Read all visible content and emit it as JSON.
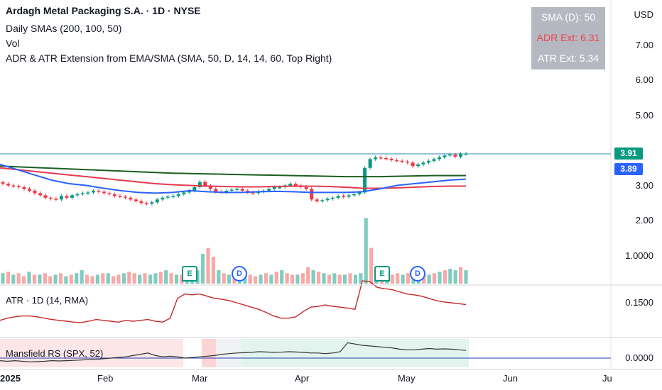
{
  "header": {
    "symbol_line": "Ardagh Metal Packaging S.A. · 1D · NYSE",
    "sma_line": "Daily SMAs (200, 100, 50)",
    "vol_line": "Vol",
    "indicator_line": "ADR & ATR Extension from EMA/SMA (SMA, 50, D, 14, 14, 60, Top Right)"
  },
  "info_box": {
    "sma_label": "SMA (D): 50",
    "adr_label": "ADR Ext: 6.31",
    "atr_label": "ATR Ext: 5.34",
    "colors": {
      "sma": "#ffffff",
      "adr": "#f23645",
      "atr": "#ffffff"
    }
  },
  "price_axis": {
    "currency": "USD",
    "ticks": [
      "7.00",
      "6.00",
      "5.00",
      "4.00",
      "3.00",
      "2.00",
      "1.0000"
    ]
  },
  "price_tags": {
    "last": "3.91",
    "sma": "3.89",
    "last_color": "#089981",
    "sma_color": "#2962ff"
  },
  "atr_pane": {
    "label": "ATR · 1D (14, RMA)",
    "tick": "0.1500",
    "color": "#c62828"
  },
  "rs_pane": {
    "label": "Mansfield RS (SPX, 52)",
    "tick": "0.0000"
  },
  "time_axis": [
    "2025",
    "Feb",
    "Mar",
    "Apr",
    "May",
    "Jun",
    "Ju"
  ],
  "markers": {
    "earnings": "E",
    "dividend": "D"
  },
  "colors": {
    "up": "#089981",
    "down": "#f23645",
    "vol_up": "#7fccc0",
    "vol_down": "#f7a9a7",
    "sma200": "#1b5e20",
    "sma100": "#e53950",
    "sma50": "#2962ff",
    "atr": "#c62828",
    "rs": "#333333"
  },
  "chart_data": [
    {
      "type": "candlestick",
      "title": "Ardagh Metal Packaging S.A. · 1D · NYSE",
      "ylim": [
        0.5,
        8.0
      ],
      "y_ticks": [
        1.0,
        2.0,
        3.0,
        4.0,
        5.0,
        6.0,
        7.0
      ],
      "x": [
        "2025-01",
        "Feb",
        "Mar",
        "Apr",
        "May",
        "Jun",
        "Jul"
      ],
      "close_series": [
        3.05,
        3.0,
        2.98,
        2.95,
        2.9,
        2.85,
        2.78,
        2.72,
        2.65,
        2.62,
        2.6,
        2.7,
        2.65,
        2.72,
        2.75,
        2.78,
        2.8,
        2.85,
        2.82,
        2.78,
        2.75,
        2.7,
        2.68,
        2.65,
        2.6,
        2.55,
        2.5,
        2.48,
        2.52,
        2.6,
        2.65,
        2.68,
        2.7,
        2.75,
        2.8,
        2.85,
        2.95,
        3.1,
        3.0,
        2.9,
        2.82,
        2.8,
        2.85,
        2.88,
        2.9,
        2.85,
        2.8,
        2.78,
        2.82,
        2.85,
        2.9,
        2.95,
        2.95,
        3.0,
        3.05,
        3.0,
        2.95,
        2.9,
        2.6,
        2.55,
        2.58,
        2.62,
        2.65,
        2.7,
        2.68,
        2.72,
        2.75,
        2.8,
        3.5,
        3.75,
        3.8,
        3.78,
        3.76,
        3.72,
        3.7,
        3.68,
        3.65,
        3.55,
        3.6,
        3.65,
        3.7,
        3.75,
        3.8,
        3.85,
        3.88,
        3.82,
        3.9,
        3.91
      ],
      "sma_200": [
        3.55,
        3.53,
        3.51,
        3.49,
        3.47,
        3.45,
        3.43,
        3.41,
        3.39,
        3.37,
        3.35,
        3.34,
        3.33,
        3.32,
        3.31,
        3.3,
        3.29,
        3.28,
        3.27,
        3.26,
        3.25,
        3.25,
        3.25,
        3.26,
        3.27,
        3.28,
        3.28,
        3.28
      ],
      "sma_100": [
        3.5,
        3.45,
        3.4,
        3.35,
        3.3,
        3.25,
        3.2,
        3.15,
        3.1,
        3.05,
        3.02,
        3.0,
        2.98,
        2.97,
        2.96,
        2.96,
        2.97,
        2.98,
        2.98,
        2.97,
        2.95,
        2.92,
        2.92,
        2.93,
        2.95,
        2.97,
        2.98,
        2.98
      ],
      "sma_50": [
        3.6,
        3.45,
        3.3,
        3.15,
        3.05,
        3.0,
        2.92,
        2.85,
        2.8,
        2.78,
        2.8,
        2.85,
        2.82,
        2.8,
        2.8,
        2.82,
        2.83,
        2.82,
        2.8,
        2.8,
        2.8,
        2.82,
        2.9,
        3.0,
        3.05,
        3.1,
        3.15,
        3.18
      ],
      "last_price": 3.91,
      "sma_value": 3.89
    },
    {
      "type": "bar",
      "title": "Vol",
      "note": "volume bars, relative heights",
      "values": [
        0.35,
        0.4,
        0.3,
        0.35,
        0.25,
        0.4,
        0.3,
        0.3,
        0.35,
        0.25,
        0.3,
        0.35,
        0.25,
        0.3,
        0.35,
        0.45,
        0.3,
        0.25,
        0.3,
        0.35,
        0.35,
        0.25,
        0.3,
        0.35,
        0.4,
        0.35,
        0.3,
        0.35,
        0.3,
        0.35,
        0.4,
        0.45,
        0.35,
        0.3,
        0.3,
        0.35,
        0.4,
        0.45,
        1.0,
        1.2,
        0.9,
        0.45,
        0.35,
        0.3,
        0.25,
        0.3,
        0.35,
        0.3,
        0.25,
        0.3,
        0.35,
        0.3,
        0.4,
        0.45,
        0.35,
        0.3,
        0.3,
        0.35,
        0.55,
        0.45,
        0.4,
        0.35,
        0.3,
        0.35,
        0.3,
        0.3,
        0.35,
        0.3,
        0.35,
        2.2,
        1.2,
        0.45,
        0.35,
        0.3,
        0.3,
        0.35,
        0.3,
        0.35,
        0.4,
        0.3,
        0.35,
        0.3,
        0.35,
        0.4,
        0.45,
        0.5,
        0.45,
        0.55,
        0.45
      ],
      "ups": [
        1,
        0,
        1,
        0,
        0,
        1,
        0,
        1,
        0,
        0,
        1,
        0,
        1,
        0,
        1,
        1,
        0,
        0,
        1,
        0,
        1,
        0,
        0,
        1,
        0,
        0,
        1,
        0,
        1,
        1,
        0,
        1,
        0,
        1,
        0,
        1,
        1,
        1,
        1,
        0,
        0,
        1,
        0,
        1,
        0,
        1,
        1,
        0,
        0,
        1,
        0,
        1,
        0,
        1,
        0,
        0,
        1,
        0,
        0,
        1,
        0,
        1,
        0,
        1,
        0,
        1,
        0,
        1,
        1,
        1,
        0,
        1,
        0,
        1,
        0,
        0,
        1,
        0,
        1,
        1,
        0,
        1,
        0,
        1,
        0,
        1,
        1,
        0,
        1
      ]
    },
    {
      "type": "line",
      "title": "ATR · 1D (14, RMA)",
      "values": [
        0.11,
        0.115,
        0.118,
        0.12,
        0.12,
        0.118,
        0.115,
        0.112,
        0.11,
        0.108,
        0.106,
        0.105,
        0.108,
        0.112,
        0.11,
        0.108,
        0.106,
        0.11,
        0.108,
        0.11,
        0.112,
        0.108,
        0.106,
        0.115,
        0.16,
        0.17,
        0.168,
        0.17,
        0.165,
        0.16,
        0.158,
        0.155,
        0.15,
        0.145,
        0.14,
        0.135,
        0.128,
        0.12,
        0.115,
        0.115,
        0.118,
        0.13,
        0.14,
        0.142,
        0.145,
        0.142,
        0.14,
        0.138,
        0.135,
        0.2,
        0.198,
        0.185,
        0.182,
        0.18,
        0.175,
        0.17,
        0.168,
        0.165,
        0.16,
        0.155,
        0.152,
        0.15,
        0.148,
        0.146
      ],
      "tick": 0.15
    },
    {
      "type": "line",
      "title": "Mansfield RS (SPX, 52)",
      "values": [
        -0.02,
        -0.025,
        -0.02,
        -0.025,
        -0.03,
        -0.028,
        -0.025,
        -0.02,
        -0.022,
        -0.02,
        -0.018,
        -0.015,
        -0.012,
        -0.01,
        -0.005,
        0.0,
        0.005,
        0.01,
        0.02,
        0.03,
        0.04,
        0.02,
        0.01,
        0.015,
        0.01,
        0.0,
        0.005,
        0.01,
        0.015,
        0.02,
        0.03,
        0.035,
        0.04,
        0.042,
        0.045,
        0.05,
        0.048,
        0.045,
        0.046,
        0.05,
        0.048,
        0.045,
        0.04,
        0.04,
        0.035,
        0.04,
        0.05,
        0.12,
        0.11,
        0.1,
        0.095,
        0.09,
        0.085,
        0.08,
        0.07,
        0.065,
        0.065,
        0.07,
        0.075,
        0.07,
        0.072,
        0.07,
        0.065,
        0.06
      ],
      "tick": 0.0
    }
  ]
}
